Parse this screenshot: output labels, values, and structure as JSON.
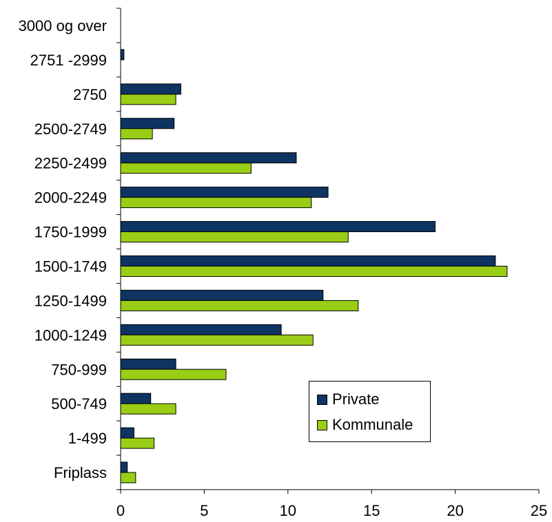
{
  "chart_data": {
    "type": "bar",
    "orientation": "horizontal",
    "categories": [
      "Friplass",
      "1-499",
      "500-749",
      "750-999",
      "1000-1249",
      "1250-1499",
      "1500-1749",
      "1750-1999",
      "2000-2249",
      "2250-2499",
      "2500-2749",
      "2750",
      "2751 -2999",
      "3000 og over"
    ],
    "series": [
      {
        "name": "Private",
        "values": [
          0.4,
          0.8,
          1.8,
          3.3,
          9.6,
          12.1,
          22.4,
          18.8,
          12.4,
          10.5,
          3.2,
          3.6,
          0.2,
          0
        ]
      },
      {
        "name": "Kommunale",
        "values": [
          0.9,
          2.0,
          3.3,
          6.3,
          11.5,
          14.2,
          23.1,
          13.6,
          11.4,
          7.8,
          1.9,
          3.3,
          0,
          0
        ]
      }
    ],
    "xlim": [
      0,
      25
    ],
    "x_ticks": [
      "0",
      "5",
      "10",
      "15",
      "20",
      "25"
    ],
    "title": "",
    "xlabel": "",
    "ylabel": "",
    "legend_position": "lower-right",
    "colors": {
      "Private": "#0e3461",
      "Kommunale": "#9acd16"
    }
  }
}
